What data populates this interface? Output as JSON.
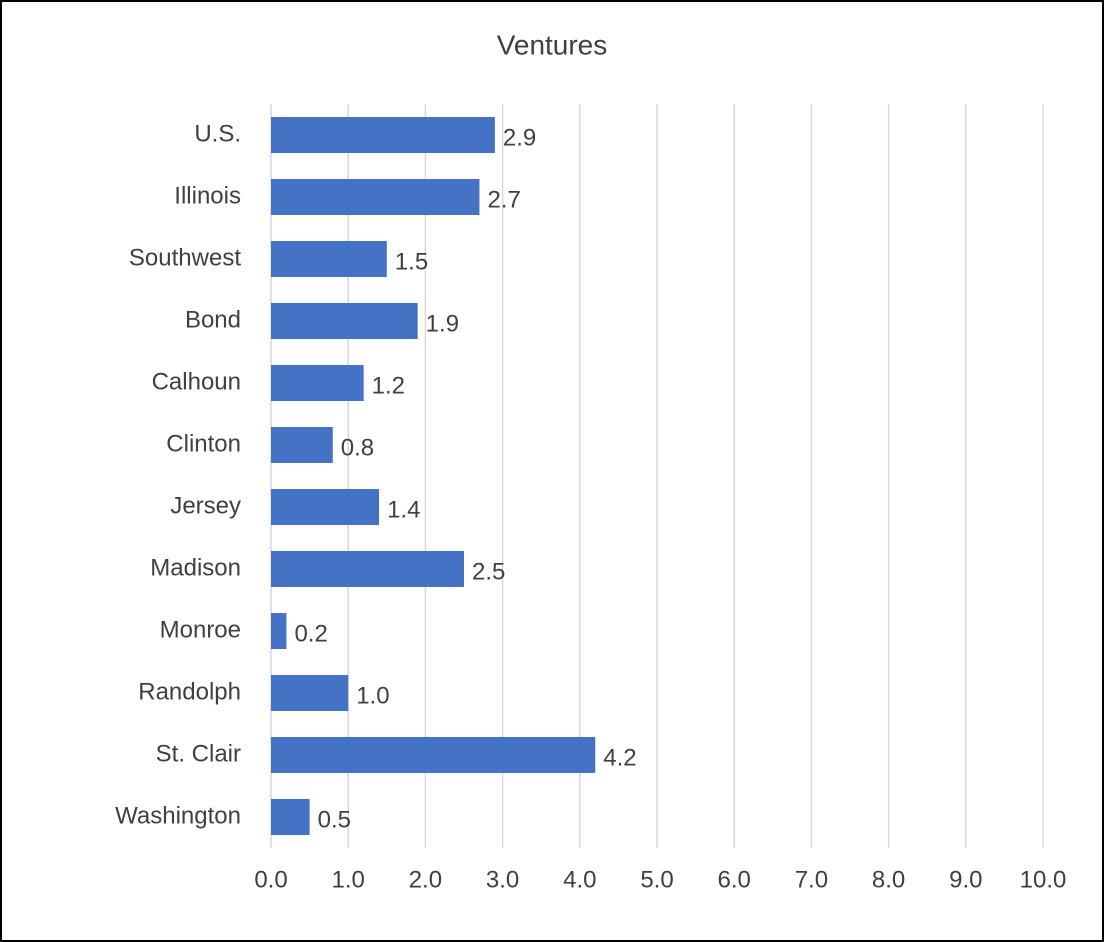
{
  "chart_data": {
    "type": "bar",
    "orientation": "horizontal",
    "title": "Ventures",
    "categories": [
      "U.S.",
      "Illinois",
      "Southwest",
      "Bond",
      "Calhoun",
      "Clinton",
      "Jersey",
      "Madison",
      "Monroe",
      "Randolph",
      "St. Clair",
      "Washington"
    ],
    "values": [
      2.9,
      2.7,
      1.5,
      1.9,
      1.2,
      0.8,
      1.4,
      2.5,
      0.2,
      1.0,
      4.2,
      0.5
    ],
    "value_labels": [
      "2.9",
      "2.7",
      "1.5",
      "1.9",
      "1.2",
      "0.8",
      "1.4",
      "2.5",
      "0.2",
      "1.0",
      "4.2",
      "0.5"
    ],
    "color": "#4472c4",
    "xlim": [
      0,
      10
    ],
    "xticks": [
      {
        "value": 0,
        "label": "0.0"
      },
      {
        "value": 1,
        "label": "1.0"
      },
      {
        "value": 2,
        "label": "2.0"
      },
      {
        "value": 3,
        "label": "3.0"
      },
      {
        "value": 4,
        "label": "4.0"
      },
      {
        "value": 5,
        "label": "5.0"
      },
      {
        "value": 6,
        "label": "6.0"
      },
      {
        "value": 7,
        "label": "7.0"
      },
      {
        "value": 8,
        "label": "8.0"
      },
      {
        "value": 9,
        "label": "9.0"
      },
      {
        "value": 10,
        "label": "10.0"
      }
    ],
    "grid": true
  }
}
